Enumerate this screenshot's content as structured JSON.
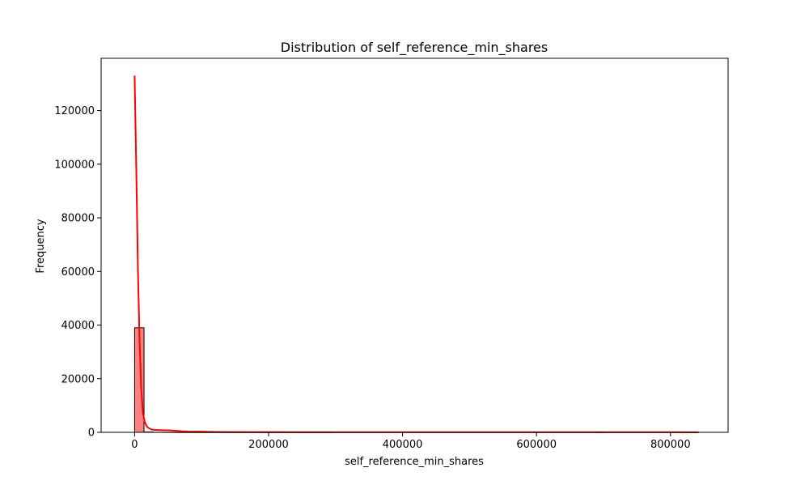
{
  "chart_data": {
    "type": "histogram",
    "title": "Distribution of  self_reference_min_shares",
    "xlabel": "self_reference_min_shares",
    "ylabel": "Frequency",
    "xlim": [
      -50000,
      886000
    ],
    "ylim": [
      0,
      139500
    ],
    "x_ticks": [
      0,
      200000,
      400000,
      600000,
      800000
    ],
    "x_tick_labels": [
      "0",
      "200000",
      "400000",
      "600000",
      "800000"
    ],
    "y_ticks": [
      0,
      20000,
      40000,
      60000,
      80000,
      100000,
      120000
    ],
    "y_tick_labels": [
      "0",
      "20000",
      "40000",
      "60000",
      "80000",
      "100000",
      "120000"
    ],
    "bars": {
      "bin_edges": [
        0,
        14027,
        28053,
        42080,
        56107,
        70133,
        84160,
        98187,
        112213,
        126240,
        140267,
        154293,
        168320,
        182347,
        196373,
        210400,
        224427,
        238453,
        252480,
        266507,
        280533,
        294560,
        308587,
        322613,
        336640,
        350667,
        364693,
        378720,
        392747,
        406773,
        420800,
        434827,
        448853,
        462880,
        476907,
        490933,
        504960,
        518987,
        533013,
        547040,
        561067,
        575093,
        589120,
        603147,
        617173,
        631200,
        645227,
        659253,
        673280,
        687307,
        701333,
        715360,
        729387,
        743413,
        757440,
        771467,
        785493,
        799520,
        813547,
        827573,
        841600
      ],
      "counts": [
        39000,
        180,
        60,
        30,
        15,
        10,
        6,
        4,
        3,
        2,
        2,
        1,
        1,
        1,
        1,
        1,
        1,
        1,
        1,
        1,
        1,
        0,
        0,
        0,
        0,
        0,
        0,
        0,
        0,
        0,
        0,
        0,
        0,
        0,
        0,
        0,
        0,
        0,
        0,
        0,
        0,
        0,
        0,
        0,
        0,
        0,
        0,
        0,
        0,
        1,
        0,
        0,
        0,
        0,
        0,
        0,
        0,
        0,
        0,
        1
      ],
      "fill": "#ff8080",
      "edge": "#000000"
    },
    "kde": {
      "color": "#ff0000",
      "x": [
        0,
        2500,
        5000,
        7500,
        10000,
        12500,
        15000,
        17500,
        20000,
        25000,
        30000,
        40000,
        50000,
        60000,
        70000,
        80000,
        90000,
        100000,
        110000,
        120000,
        140000,
        200000,
        300000,
        400000,
        500000,
        600000,
        700000,
        800000,
        842000
      ],
      "y": [
        133000,
        98000,
        60000,
        33000,
        15500,
        7000,
        4000,
        2500,
        1700,
        1100,
        900,
        800,
        750,
        600,
        400,
        300,
        280,
        250,
        200,
        150,
        100,
        60,
        40,
        30,
        20,
        20,
        30,
        20,
        10
      ]
    },
    "grid": false
  },
  "colors": {
    "bar_fill": "#ff8080",
    "kde_line": "#ff0000",
    "axes": "#000000"
  }
}
